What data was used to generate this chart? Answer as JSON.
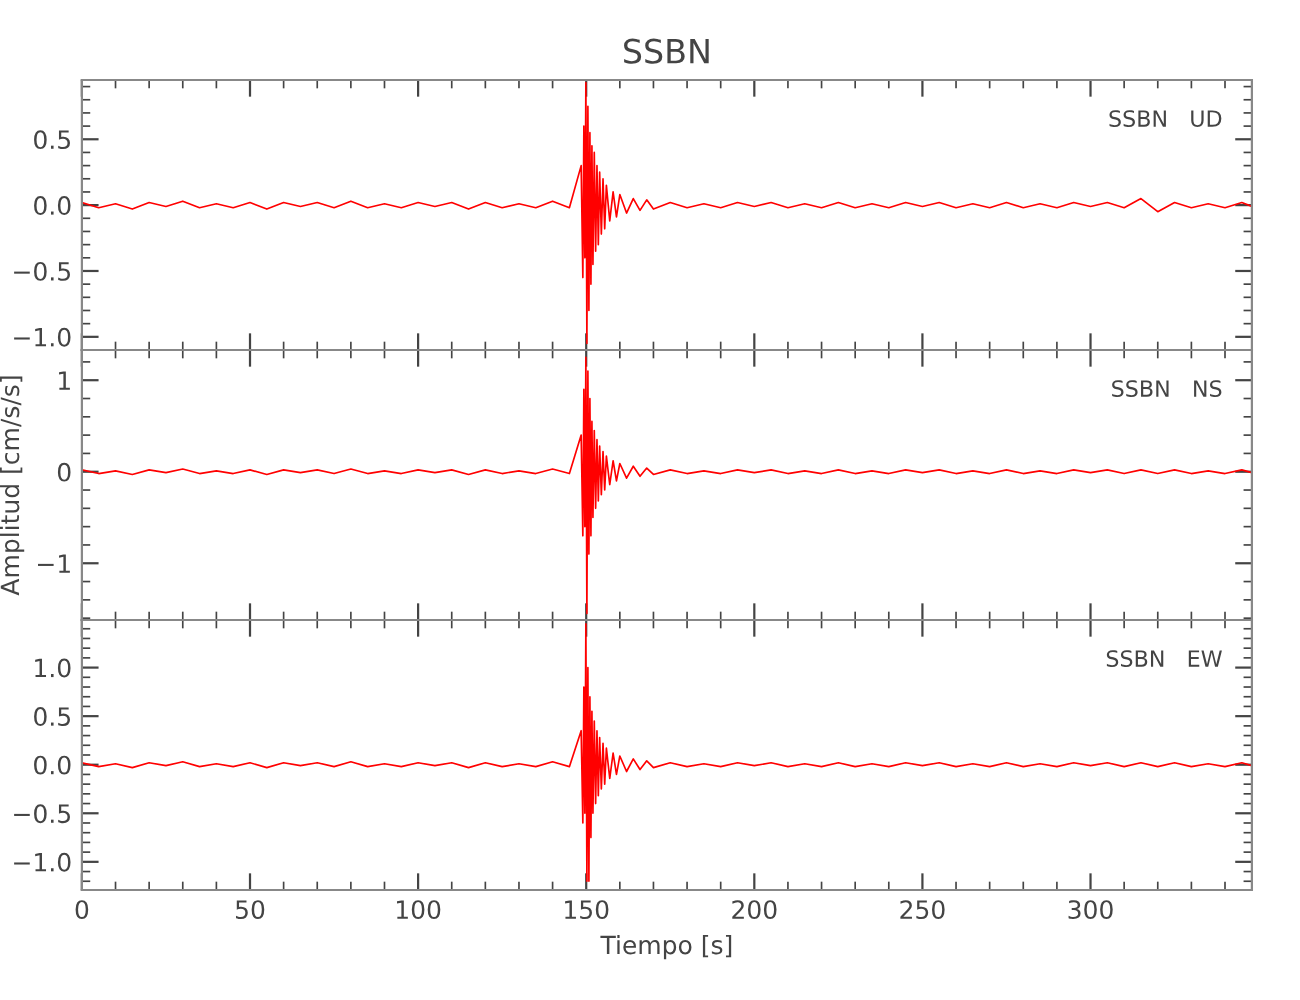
{
  "chart_data": [
    {
      "type": "line",
      "title": "SSBN",
      "annotations": [
        "SSBN   UD"
      ],
      "xlim": [
        0,
        348
      ],
      "xticks": [
        0,
        50,
        100,
        150,
        200,
        250,
        300
      ],
      "ylim": [
        -1.1,
        0.95
      ],
      "yticks": [
        {
          "value": -1.0,
          "label": "−1.0"
        },
        {
          "value": -0.5,
          "label": "−0.5"
        },
        {
          "value": 0.0,
          "label": "0.0"
        },
        {
          "value": 0.5,
          "label": "0.5"
        }
      ],
      "tick_labels": "y",
      "grid": false,
      "legend": false,
      "series": [
        {
          "color": "#ff0000",
          "x": [
            0,
            5,
            10,
            15,
            20,
            25,
            30,
            35,
            40,
            45,
            50,
            55,
            60,
            65,
            70,
            75,
            80,
            85,
            90,
            95,
            100,
            105,
            110,
            115,
            120,
            125,
            130,
            135,
            140,
            145,
            148.5,
            149,
            149.3,
            149.6,
            149.9,
            150.2,
            150.5,
            150.8,
            151.1,
            151.4,
            151.7,
            152,
            152.4,
            152.8,
            153.2,
            153.6,
            154,
            154.5,
            155,
            155.5,
            156,
            157,
            158,
            159,
            160,
            162,
            164,
            166,
            168,
            170,
            175,
            180,
            185,
            190,
            195,
            200,
            205,
            210,
            215,
            220,
            225,
            230,
            235,
            240,
            245,
            250,
            255,
            260,
            265,
            270,
            275,
            280,
            285,
            290,
            295,
            300,
            305,
            310,
            315,
            320,
            325,
            330,
            335,
            340,
            345,
            348
          ],
          "values": [
            0.02,
            -0.02,
            0.01,
            -0.03,
            0.02,
            -0.01,
            0.03,
            -0.02,
            0.01,
            -0.02,
            0.02,
            -0.03,
            0.02,
            -0.01,
            0.02,
            -0.02,
            0.03,
            -0.02,
            0.01,
            -0.02,
            0.02,
            -0.01,
            0.02,
            -0.03,
            0.02,
            -0.02,
            0.01,
            -0.02,
            0.03,
            -0.02,
            0.3,
            -0.55,
            0.6,
            -0.4,
            0.93,
            -1.05,
            0.75,
            -0.8,
            0.55,
            -0.6,
            0.45,
            -0.45,
            0.4,
            -0.35,
            0.3,
            -0.3,
            0.25,
            -0.22,
            0.2,
            -0.18,
            0.15,
            -0.12,
            0.1,
            -0.09,
            0.08,
            -0.06,
            0.05,
            -0.04,
            0.04,
            -0.03,
            0.02,
            -0.02,
            0.01,
            -0.02,
            0.02,
            -0.01,
            0.02,
            -0.02,
            0.01,
            -0.02,
            0.02,
            -0.02,
            0.01,
            -0.02,
            0.02,
            -0.01,
            0.02,
            -0.02,
            0.01,
            -0.02,
            0.02,
            -0.02,
            0.01,
            -0.02,
            0.02,
            -0.01,
            0.02,
            -0.02,
            0.05,
            -0.05,
            0.02,
            -0.02,
            0.01,
            -0.02,
            0.02,
            -0.01
          ]
        }
      ]
    },
    {
      "type": "line",
      "ylabel": "Amplitud [cm/s/s]",
      "annotations": [
        "SSBN   NS"
      ],
      "xlim": [
        0,
        348
      ],
      "xticks": [
        0,
        50,
        100,
        150,
        200,
        250,
        300
      ],
      "ylim": [
        -1.62,
        1.33
      ],
      "yticks": [
        {
          "value": -1,
          "label": "−1"
        },
        0,
        1
      ],
      "tick_labels": "y",
      "grid": false,
      "legend": false,
      "series": [
        {
          "color": "#ff0000",
          "x": [
            0,
            5,
            10,
            15,
            20,
            25,
            30,
            35,
            40,
            45,
            50,
            55,
            60,
            65,
            70,
            75,
            80,
            85,
            90,
            95,
            100,
            105,
            110,
            115,
            120,
            125,
            130,
            135,
            140,
            145,
            148.5,
            149,
            149.3,
            149.6,
            149.9,
            150.2,
            150.5,
            150.8,
            151.1,
            151.4,
            151.7,
            152,
            152.4,
            152.8,
            153.2,
            153.6,
            154,
            154.5,
            155,
            155.5,
            156,
            157,
            158,
            159,
            160,
            162,
            164,
            166,
            168,
            170,
            175,
            180,
            185,
            190,
            195,
            200,
            205,
            210,
            215,
            220,
            225,
            230,
            235,
            240,
            245,
            250,
            255,
            260,
            265,
            270,
            275,
            280,
            285,
            290,
            295,
            300,
            305,
            310,
            315,
            320,
            325,
            330,
            335,
            340,
            345,
            348
          ],
          "values": [
            0.02,
            -0.02,
            0.01,
            -0.03,
            0.02,
            -0.01,
            0.03,
            -0.02,
            0.01,
            -0.02,
            0.02,
            -0.03,
            0.02,
            -0.01,
            0.02,
            -0.02,
            0.03,
            -0.02,
            0.01,
            -0.02,
            0.02,
            -0.01,
            0.02,
            -0.03,
            0.02,
            -0.02,
            0.01,
            -0.02,
            0.03,
            -0.02,
            0.4,
            -0.7,
            0.9,
            -0.6,
            1.25,
            -1.55,
            1.1,
            -0.9,
            0.8,
            -0.7,
            0.55,
            -0.5,
            0.45,
            -0.4,
            0.35,
            -0.32,
            0.28,
            -0.25,
            0.22,
            -0.2,
            0.17,
            -0.14,
            0.12,
            -0.1,
            0.09,
            -0.07,
            0.06,
            -0.05,
            0.04,
            -0.03,
            0.02,
            -0.02,
            0.01,
            -0.02,
            0.02,
            -0.01,
            0.02,
            -0.02,
            0.01,
            -0.02,
            0.02,
            -0.02,
            0.01,
            -0.02,
            0.02,
            -0.01,
            0.02,
            -0.02,
            0.01,
            -0.02,
            0.02,
            -0.02,
            0.01,
            -0.02,
            0.02,
            -0.01,
            0.02,
            -0.02,
            0.02,
            -0.02,
            0.02,
            -0.02,
            0.01,
            -0.02,
            0.02,
            -0.01
          ]
        }
      ]
    },
    {
      "type": "line",
      "xlabel": "Tiempo [s]",
      "annotations": [
        "SSBN   EW"
      ],
      "xlim": [
        0,
        348
      ],
      "xticks": [
        0,
        50,
        100,
        150,
        200,
        250,
        300
      ],
      "ylim": [
        -1.29,
        1.49
      ],
      "yticks": [
        {
          "value": -1.0,
          "label": "−1.0"
        },
        {
          "value": -0.5,
          "label": "−0.5"
        },
        {
          "value": 0.0,
          "label": "0.0"
        },
        {
          "value": 0.5,
          "label": "0.5"
        },
        {
          "value": 1.0,
          "label": "1.0"
        }
      ],
      "grid": false,
      "legend": false,
      "series": [
        {
          "color": "#ff0000",
          "x": [
            0,
            5,
            10,
            15,
            20,
            25,
            30,
            35,
            40,
            45,
            50,
            55,
            60,
            65,
            70,
            75,
            80,
            85,
            90,
            95,
            100,
            105,
            110,
            115,
            120,
            125,
            130,
            135,
            140,
            145,
            148.5,
            149,
            149.3,
            149.6,
            149.9,
            150.2,
            150.5,
            150.8,
            151.1,
            151.4,
            151.7,
            152,
            152.4,
            152.8,
            153.2,
            153.6,
            154,
            154.5,
            155,
            155.5,
            156,
            157,
            158,
            159,
            160,
            162,
            164,
            166,
            168,
            170,
            175,
            180,
            185,
            190,
            195,
            200,
            205,
            210,
            215,
            220,
            225,
            230,
            235,
            240,
            245,
            250,
            255,
            260,
            265,
            270,
            275,
            280,
            285,
            290,
            295,
            300,
            305,
            310,
            315,
            320,
            325,
            330,
            335,
            340,
            345,
            348
          ],
          "values": [
            0.02,
            -0.02,
            0.01,
            -0.03,
            0.02,
            -0.01,
            0.03,
            -0.02,
            0.01,
            -0.02,
            0.02,
            -0.03,
            0.02,
            -0.01,
            0.02,
            -0.02,
            0.03,
            -0.02,
            0.01,
            -0.02,
            0.02,
            -0.01,
            0.02,
            -0.03,
            0.02,
            -0.02,
            0.01,
            -0.02,
            0.03,
            -0.02,
            0.35,
            -0.6,
            0.8,
            -0.5,
            1.45,
            -1.2,
            1.0,
            -1.2,
            0.7,
            -0.75,
            0.55,
            -0.5,
            0.45,
            -0.4,
            0.35,
            -0.32,
            0.28,
            -0.25,
            0.22,
            -0.2,
            0.17,
            -0.14,
            0.12,
            -0.1,
            0.09,
            -0.07,
            0.06,
            -0.05,
            0.04,
            -0.03,
            0.02,
            -0.02,
            0.01,
            -0.02,
            0.02,
            -0.01,
            0.02,
            -0.02,
            0.01,
            -0.02,
            0.02,
            -0.02,
            0.01,
            -0.02,
            0.02,
            -0.01,
            0.02,
            -0.02,
            0.01,
            -0.02,
            0.02,
            -0.02,
            0.01,
            -0.02,
            0.02,
            -0.01,
            0.02,
            -0.02,
            0.02,
            -0.02,
            0.02,
            -0.02,
            0.01,
            -0.02,
            0.02,
            -0.01
          ]
        }
      ]
    }
  ]
}
